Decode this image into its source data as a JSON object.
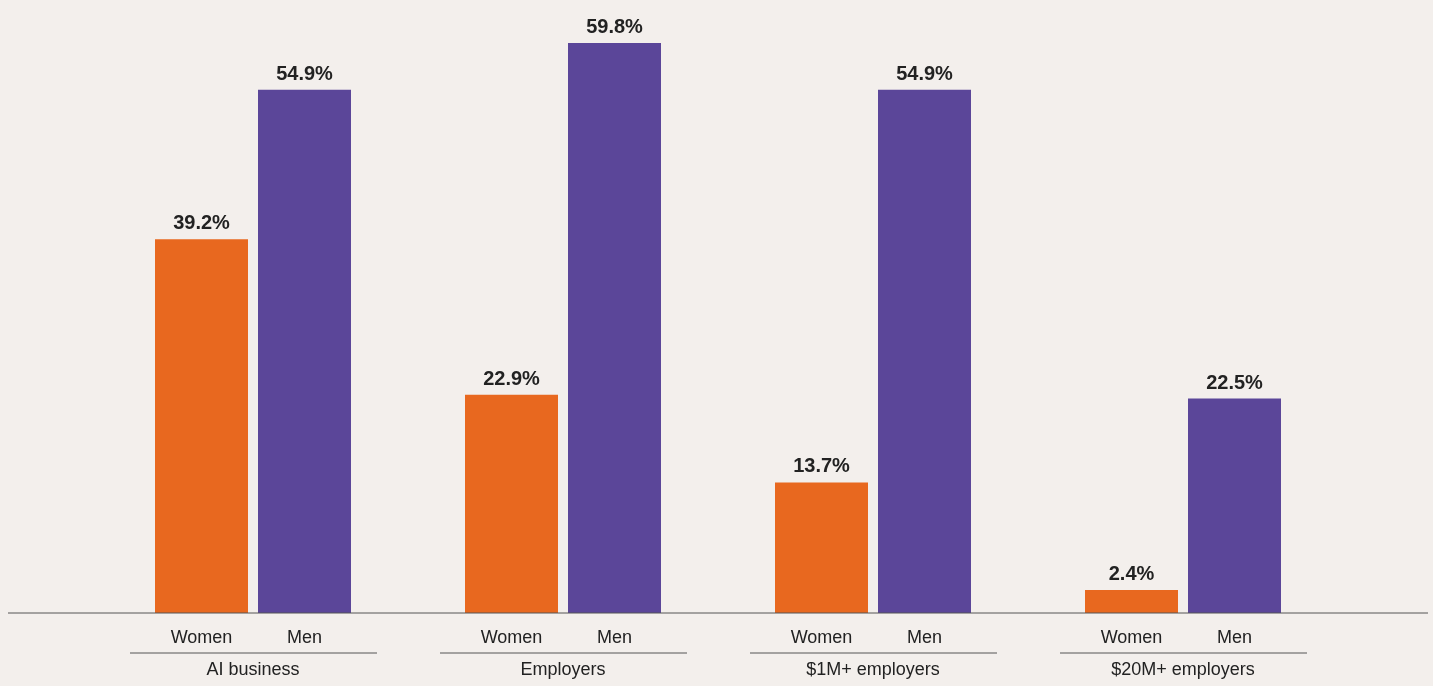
{
  "chart_data": {
    "type": "bar",
    "categories": [
      "AI business",
      "Employers",
      "$1M+ employers",
      "$20M+ employers"
    ],
    "series": [
      {
        "name": "Women",
        "color": "#e8681f",
        "values": [
          39.2,
          22.9,
          13.7,
          2.4
        ],
        "value_labels": [
          "39.2%",
          "22.9%",
          "13.7%",
          "2.4%"
        ]
      },
      {
        "name": "Men",
        "color": "#5b4699",
        "values": [
          54.9,
          59.8,
          54.9,
          22.5
        ],
        "value_labels": [
          "54.9%",
          "59.8%",
          "54.9%",
          "22.5%"
        ]
      }
    ],
    "grid": false,
    "legend": false
  }
}
